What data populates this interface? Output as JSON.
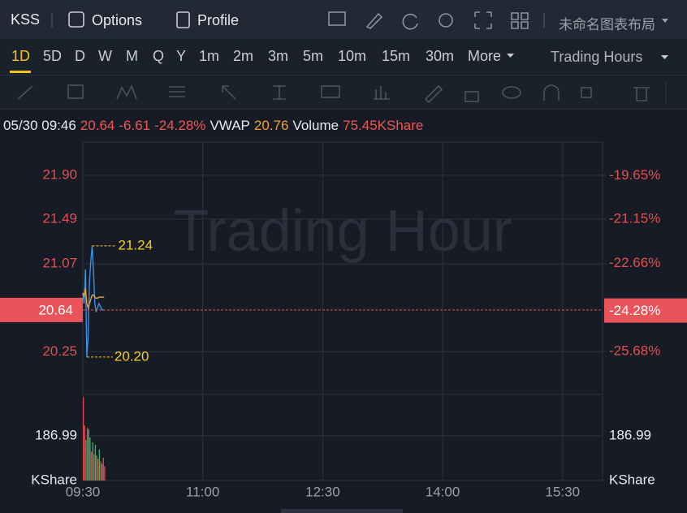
{
  "header": {
    "symbol": "KSS",
    "options": "Options",
    "profile": "Profile",
    "layout": "未命名图表布局"
  },
  "timeframes": [
    "1D",
    "5D",
    "D",
    "W",
    "M",
    "Q",
    "Y",
    "1m",
    "2m",
    "3m",
    "5m",
    "10m",
    "15m",
    "30m",
    "More"
  ],
  "trading_hours": "Trading Hours",
  "info": {
    "datetime": "05/30 09:46",
    "price": "20.64",
    "change": "-6.61",
    "change_pct": "-24.28%",
    "vwap": "20.76",
    "volume_label": "Volume",
    "volume": "75.45KShare"
  },
  "watermark": "Trading Hour",
  "chart_data": [
    {
      "type": "line",
      "x": [
        570,
        571,
        572,
        573,
        574,
        575,
        576,
        577,
        578,
        579,
        580,
        581,
        582,
        583,
        584,
        585,
        586
      ],
      "series": [
        {
          "color": "#3d8fe0",
          "values": [
            20.8,
            20.7,
            21.02,
            20.2,
            20.4,
            20.9,
            21.1,
            21.24,
            21.0,
            20.7,
            20.62,
            20.66,
            20.7,
            20.68,
            20.65,
            20.64,
            20.64
          ]
        },
        {
          "name": "VWAP",
          "color": "#e8a33c",
          "values": [
            20.8,
            20.77,
            20.84,
            20.7,
            20.66,
            20.7,
            20.74,
            20.78,
            20.78,
            20.76,
            20.75,
            20.75,
            20.76,
            20.76,
            20.76,
            20.76,
            20.76
          ]
        }
      ],
      "xlim": [
        570,
        960
      ],
      "ylim": [
        19.85,
        22.21
      ],
      "yticks": [
        {
          "value": 21.9,
          "label": "21.90"
        },
        21.49,
        21.07,
        20.25
      ],
      "y2lim": [
        -27.16,
        -18.5
      ],
      "y2ticks": [
        {
          "value": -19.65,
          "label": "-19.65%"
        },
        {
          "value": -21.15,
          "label": "-21.15%"
        },
        {
          "value": -22.66,
          "label": "-22.66%"
        },
        {
          "value": -25.68,
          "label": "-25.68%"
        }
      ],
      "last": {
        "value": 20.64,
        "label": "20.64",
        "pct": {
          "value": -24.28,
          "label": "-24.28%"
        }
      },
      "high": 21.24,
      "low": {
        "value": 20.2,
        "label": "20.20"
      },
      "grid": true
    },
    {
      "type": "bar",
      "x": [
        570,
        571,
        572,
        573,
        574,
        575,
        576,
        577,
        578,
        579,
        580,
        581,
        582,
        583,
        584,
        585,
        586
      ],
      "values": [
        349,
        230,
        170,
        220,
        215,
        180,
        120,
        160,
        110,
        150,
        105,
        90,
        130,
        80,
        70,
        95,
        60
      ],
      "colors": [
        "#e0484a",
        "#e0484a",
        "#3fb06a",
        "#e0484a",
        "#3fb06a",
        "#3fb06a",
        "#e0484a",
        "#3fb06a",
        "#e0484a",
        "#3fb06a",
        "#3fb06a",
        "#e0484a",
        "#3fb06a",
        "#e0484a",
        "#3fb06a",
        "#e0484a",
        "#e0484a"
      ],
      "xlim": [
        570,
        960
      ],
      "xticks": [
        {
          "value": 570,
          "label": "09:30"
        },
        {
          "value": 660,
          "label": "11:00"
        },
        {
          "value": 750,
          "label": "12:30"
        },
        {
          "value": 840,
          "label": "14:00"
        },
        {
          "value": 930,
          "label": "15:30"
        }
      ],
      "ylim": [
        0,
        360
      ],
      "yticks": [
        186.99
      ],
      "unit": "KShare",
      "grid": true
    }
  ]
}
